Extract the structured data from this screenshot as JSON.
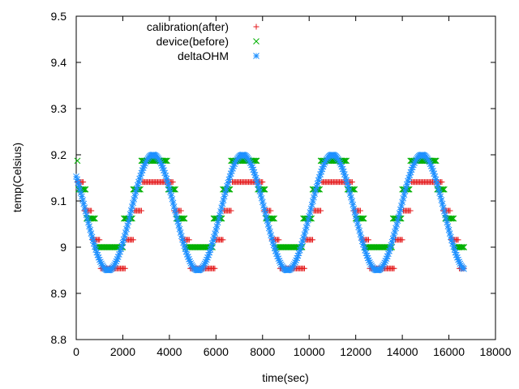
{
  "chart_data": {
    "type": "scatter",
    "xlabel": "time(sec)",
    "ylabel": "temp(Celsius)",
    "xlim": [
      0,
      18000
    ],
    "ylim": [
      8.8,
      9.5
    ],
    "xticks": [
      "0",
      "2000",
      "4000",
      "6000",
      "8000",
      "10000",
      "12000",
      "14000",
      "16000",
      "18000"
    ],
    "yticks": [
      "8.8",
      "8.9",
      "9",
      "9.1",
      "9.2",
      "9.3",
      "9.4",
      "9.5"
    ],
    "grid": false,
    "legend_position": "top-left",
    "series": [
      {
        "name": "calibration(after)",
        "color": "#e41a1c",
        "marker": "plus",
        "levels": [
          8.891,
          8.954,
          9.016,
          9.079,
          9.141
        ],
        "wave": {
          "period": 3850,
          "t_peak": 3500,
          "mean": 9.06,
          "amp": 0.12,
          "start": 50,
          "end": 16650,
          "step": 50
        }
      },
      {
        "name": "device(before)",
        "color": "#00b000",
        "marker": "cross",
        "levels": [
          9.0,
          9.062,
          9.125,
          9.187,
          9.25
        ],
        "wave": {
          "period": 3850,
          "t_peak": 3350,
          "mean": 9.09,
          "amp": 0.11,
          "start": 50,
          "end": 16650,
          "step": 50
        }
      },
      {
        "name": "deltaOHM",
        "color": "#1e90ff",
        "marker": "star",
        "levels": [],
        "wave": {
          "period": 3850,
          "t_peak": 3300,
          "mean": 9.075,
          "amp": 0.125,
          "start": 0,
          "end": 16650,
          "step": 40
        }
      }
    ]
  }
}
